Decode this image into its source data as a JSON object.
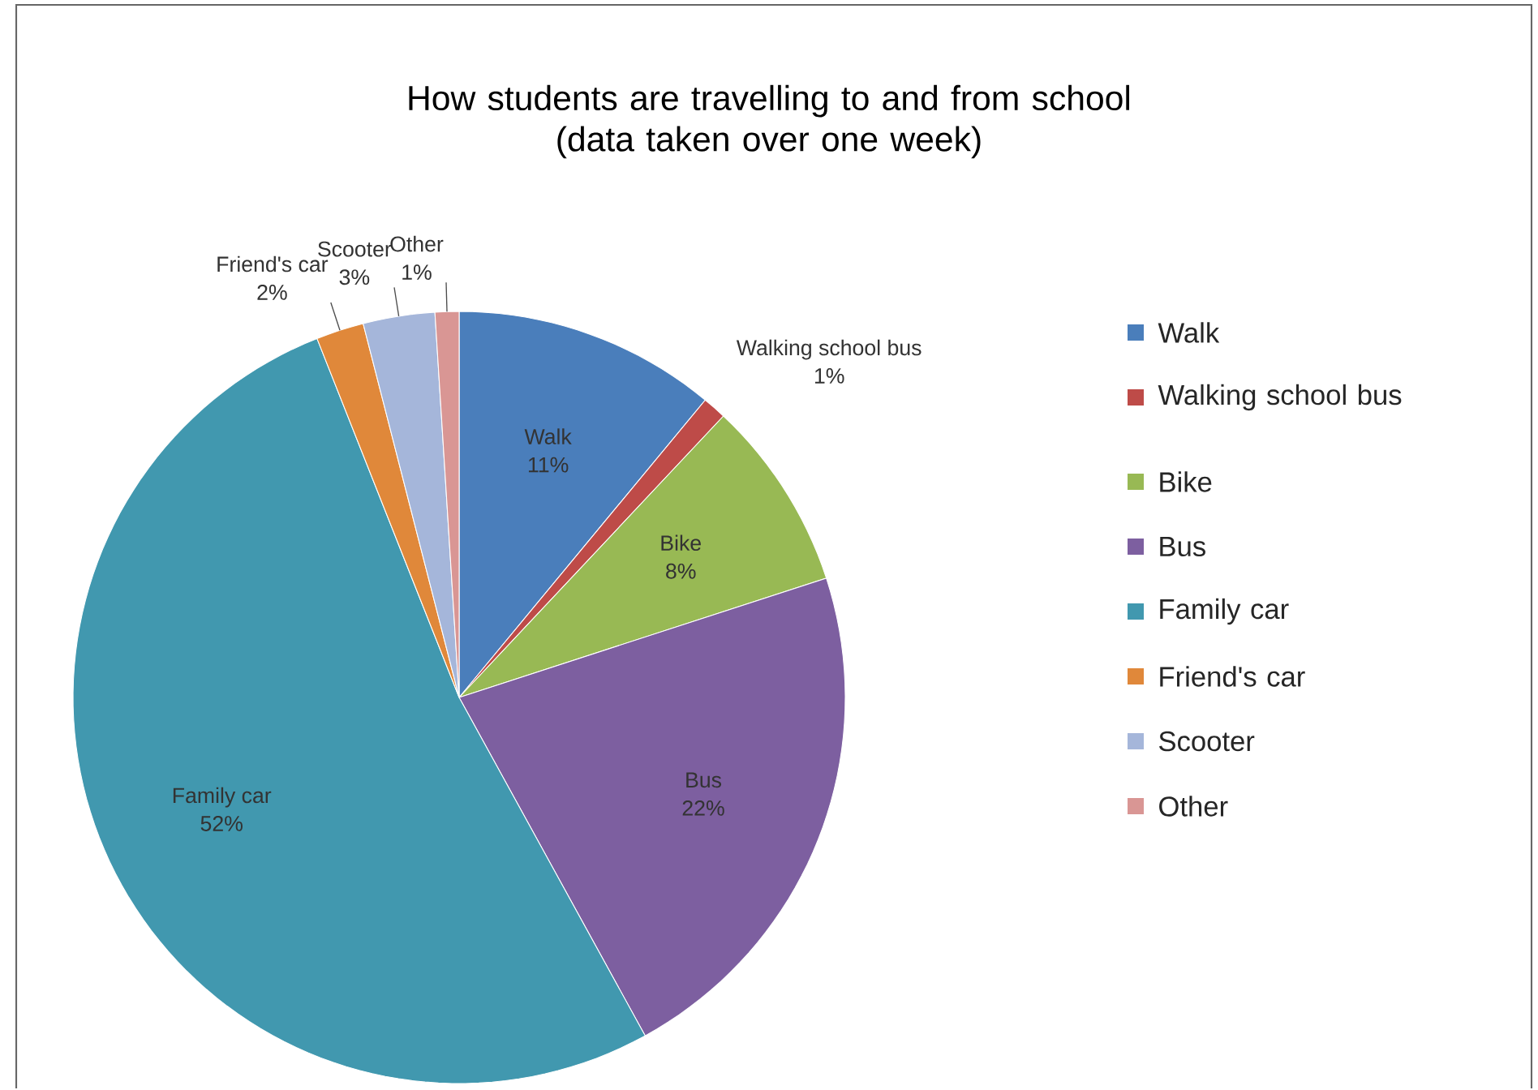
{
  "chart_data": {
    "type": "pie",
    "title": "How students are travelling to and from school\n(data taken over one week)",
    "categories": [
      "Walk",
      "Walking school bus",
      "Bike",
      "Bus",
      "Family car",
      "Friend's car",
      "Scooter",
      "Other"
    ],
    "values": [
      11,
      1,
      8,
      22,
      52,
      2,
      3,
      1
    ],
    "value_labels": [
      "11%",
      "1%",
      "8%",
      "22%",
      "52%",
      "2%",
      "3%",
      "1%"
    ],
    "colors": [
      "#4a7ebb",
      "#be4b48",
      "#98b954",
      "#7d5fa0",
      "#4198af",
      "#e0883a",
      "#a5b6da",
      "#d99694"
    ],
    "legend": "right"
  }
}
